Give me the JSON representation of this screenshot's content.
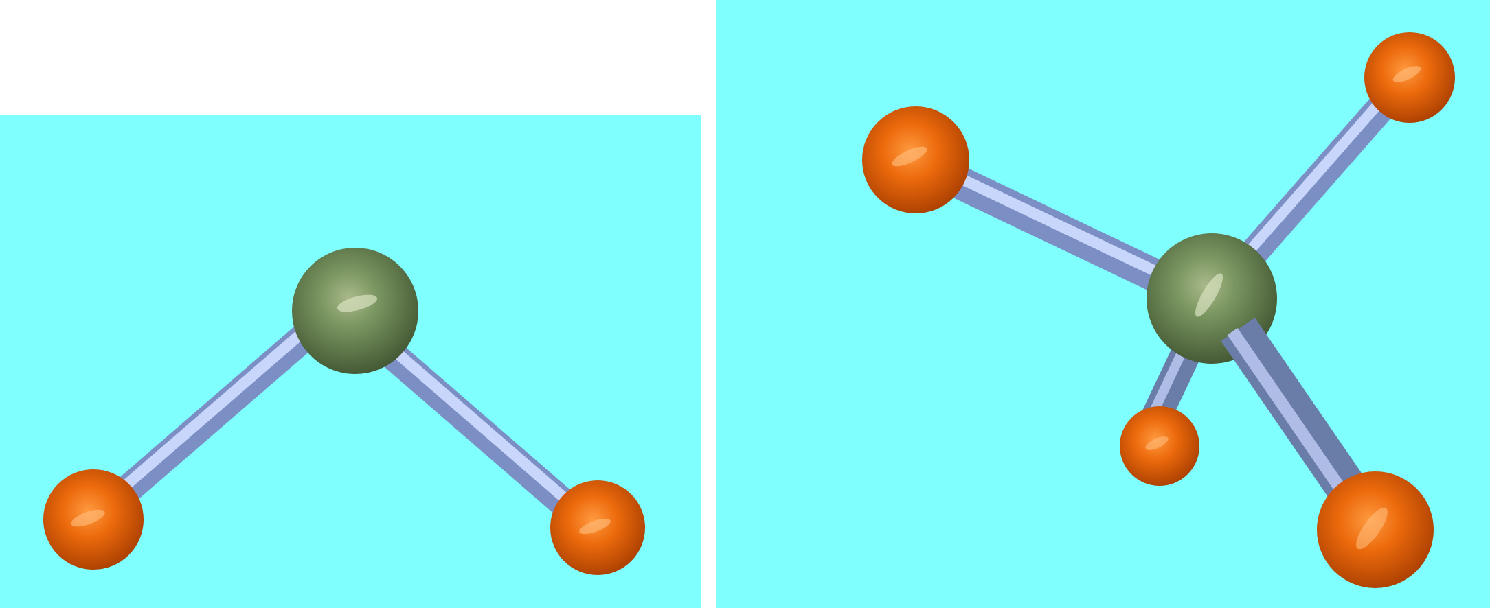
{
  "scene": {
    "background_color": "#ffffff",
    "viewport_color": "#80ffff"
  },
  "colors": {
    "central_atom": "#6e8a52",
    "terminal_atom": "#e86a10",
    "bond": "#9aaee0"
  },
  "molecules": [
    {
      "id": "bent",
      "central_atom_count": 1,
      "terminal_atom_count": 2,
      "bond_count": 2
    },
    {
      "id": "tetrahedral",
      "central_atom_count": 1,
      "terminal_atom_count": 4,
      "bond_count": 4
    }
  ]
}
